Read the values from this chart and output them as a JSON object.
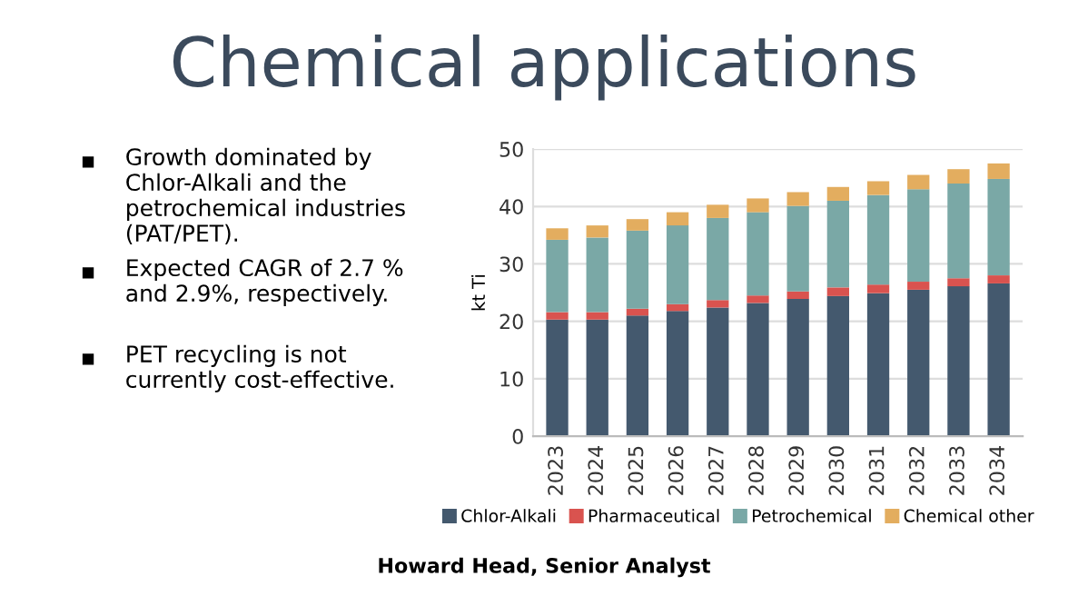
{
  "chart_data": {
    "type": "bar",
    "title": "Chemical applications",
    "ylabel": "kt Ti",
    "stacked": true,
    "categories": [
      "2023",
      "2024",
      "2025",
      "2026",
      "2027",
      "2028",
      "2029",
      "2030",
      "2031",
      "2032",
      "2033",
      "2034"
    ],
    "series": [
      {
        "name": "Chlor-Alkali",
        "color": "#44596e",
        "values": [
          20.3,
          20.3,
          21.0,
          21.8,
          22.4,
          23.2,
          23.9,
          24.4,
          24.9,
          25.5,
          26.1,
          26.6
        ]
      },
      {
        "name": "Pharmaceutical",
        "color": "#d9534f",
        "values": [
          1.3,
          1.3,
          1.2,
          1.2,
          1.3,
          1.3,
          1.3,
          1.5,
          1.5,
          1.4,
          1.4,
          1.4
        ]
      },
      {
        "name": "Petrochemical",
        "color": "#7aa8a6",
        "values": [
          12.6,
          13.0,
          13.6,
          13.7,
          14.3,
          14.5,
          14.9,
          15.1,
          15.6,
          16.1,
          16.5,
          16.8
        ]
      },
      {
        "name": "Chemical other",
        "color": "#e3ad5f",
        "values": [
          2.0,
          2.1,
          2.0,
          2.3,
          2.3,
          2.4,
          2.4,
          2.4,
          2.4,
          2.5,
          2.5,
          2.7
        ]
      }
    ],
    "ylim": [
      0,
      50
    ],
    "yticks": [
      0,
      10,
      20,
      30,
      40,
      50
    ],
    "grid": "y",
    "legend": "bottom",
    "annotations": [
      "Growth dominated by Chlor-Alkali and the petrochemical industries (PAT/PET).",
      "Expected CAGR of 2.7 % and 2.9%, respectively.",
      "PET recycling is not currently cost-effective.",
      "Howard Head, Senior Analyst"
    ]
  }
}
